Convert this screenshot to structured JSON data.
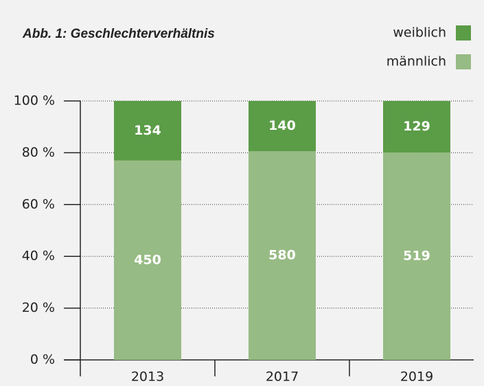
{
  "chart_data": {
    "type": "bar",
    "stack": "percent",
    "title": "Abb. 1: Geschlechterverhältnis",
    "categories": [
      "2013",
      "2017",
      "2019"
    ],
    "series": [
      {
        "name": "männlich",
        "color": "#97bb84",
        "values": [
          450,
          580,
          519
        ]
      },
      {
        "name": "weiblich",
        "color": "#5b9c47",
        "values": [
          134,
          140,
          129
        ]
      }
    ],
    "ylim": [
      0,
      100
    ],
    "yticks": [
      {
        "value": 0,
        "label": "0 %"
      },
      {
        "value": 20,
        "label": "20 %"
      },
      {
        "value": 40,
        "label": "40 %"
      },
      {
        "value": 60,
        "label": "60 %"
      },
      {
        "value": 80,
        "label": "80 %"
      },
      {
        "value": 100,
        "label": "100 %"
      }
    ],
    "grid": true,
    "legend": "top-right"
  }
}
